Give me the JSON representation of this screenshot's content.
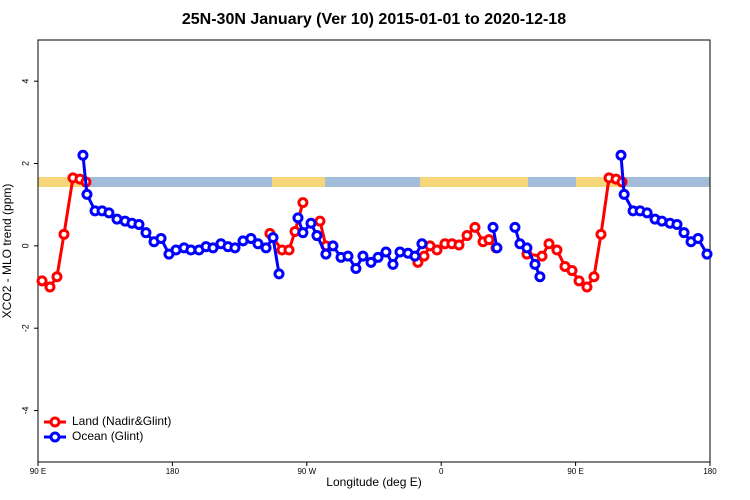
{
  "chart_data": {
    "type": "line",
    "title": "25N-30N January (Ver 10)   2015-01-01 to 2020-12-18",
    "x_label": "Longitude (deg E)",
    "y_label": "XCO2 - MLO trend (ppm)",
    "xlim": [
      90,
      540
    ],
    "ylim": [
      -5.25,
      5
    ],
    "xticks": [
      {
        "value": 90,
        "label": "90 E"
      },
      180,
      {
        "value": 270,
        "label": "90 W"
      },
      {
        "value": 360,
        "label": "0"
      },
      {
        "value": 450,
        "label": "90 E"
      },
      {
        "value": 540,
        "label": "180"
      }
    ],
    "yticks": [
      -4,
      -2,
      0,
      2,
      4
    ],
    "grid": false,
    "legend": "bottomleft",
    "series": [
      {
        "name": "Land (Nadir&Glint)",
        "color": "#ff0000",
        "x": [
          92.7,
          98.0,
          102.7,
          107.4,
          113.4,
          118.1,
          122.1,
          null,
          245.3,
          253.4,
          258.1,
          262.1,
          267.4,
          null,
          278.8,
          282.8,
          null,
          344.4,
          348.5,
          352.5,
          357.2,
          362.5,
          367.2,
          371.9,
          377.3,
          382.6,
          388.0,
          392.0,
          396.7,
          null,
          417.4,
          427.5,
          432.2,
          437.5,
          442.9,
          447.6,
          452.3,
          457.6,
          462.3,
          467.0,
          472.4,
          477.1,
          481.1
        ],
        "values": [
          -0.85,
          -1.0,
          -0.75,
          0.28,
          1.65,
          1.62,
          1.55,
          null,
          0.3,
          -0.1,
          -0.1,
          0.35,
          1.05,
          null,
          0.6,
          0.0,
          null,
          -0.4,
          -0.25,
          0.0,
          -0.1,
          0.05,
          0.05,
          0.02,
          0.25,
          0.45,
          0.1,
          0.15,
          -0.05,
          null,
          -0.2,
          -0.25,
          0.05,
          -0.1,
          -0.5,
          -0.6,
          -0.85,
          -1.0,
          -0.75,
          0.28,
          1.65,
          1.62,
          1.55
        ]
      },
      {
        "name": "Ocean (Glint)",
        "color": "#0000ff",
        "x": [
          120.1,
          122.8,
          128.2,
          132.9,
          137.5,
          142.9,
          148.3,
          152.9,
          157.6,
          162.3,
          167.7,
          172.4,
          177.7,
          182.4,
          187.8,
          192.4,
          197.8,
          202.5,
          207.2,
          212.5,
          217.2,
          221.9,
          227.3,
          232.6,
          237.3,
          242.7,
          247.4,
          251.4,
          null,
          264.1,
          267.4,
          272.8,
          276.8,
          282.8,
          287.5,
          292.9,
          297.6,
          302.9,
          307.6,
          313.0,
          317.7,
          323.0,
          327.7,
          332.4,
          337.8,
          342.4,
          347.1,
          null,
          394.7,
          397.3,
          null,
          409.4,
          412.7,
          417.4,
          422.8,
          426.1,
          null,
          480.4,
          482.5,
          488.5,
          493.2,
          497.9,
          503.2,
          507.8,
          513.2,
          517.9,
          522.6,
          527.3,
          532.0,
          538.0
        ],
        "values": [
          2.2,
          1.25,
          0.85,
          0.85,
          0.8,
          0.65,
          0.6,
          0.55,
          0.52,
          0.32,
          0.1,
          0.18,
          -0.2,
          -0.1,
          -0.05,
          -0.1,
          -0.1,
          -0.02,
          -0.05,
          0.05,
          -0.02,
          -0.05,
          0.12,
          0.18,
          0.05,
          -0.05,
          0.2,
          -0.68,
          null,
          0.68,
          0.32,
          0.55,
          0.25,
          -0.2,
          0.0,
          -0.28,
          -0.25,
          -0.55,
          -0.25,
          -0.4,
          -0.28,
          -0.15,
          -0.45,
          -0.15,
          -0.18,
          -0.25,
          0.05,
          null,
          0.45,
          -0.05,
          null,
          0.45,
          0.05,
          -0.05,
          -0.45,
          -0.75,
          null,
          2.2,
          1.25,
          0.85,
          0.85,
          0.8,
          0.65,
          0.6,
          0.55,
          0.52,
          0.32,
          0.1,
          0.18,
          -0.2
        ]
      }
    ]
  }
}
